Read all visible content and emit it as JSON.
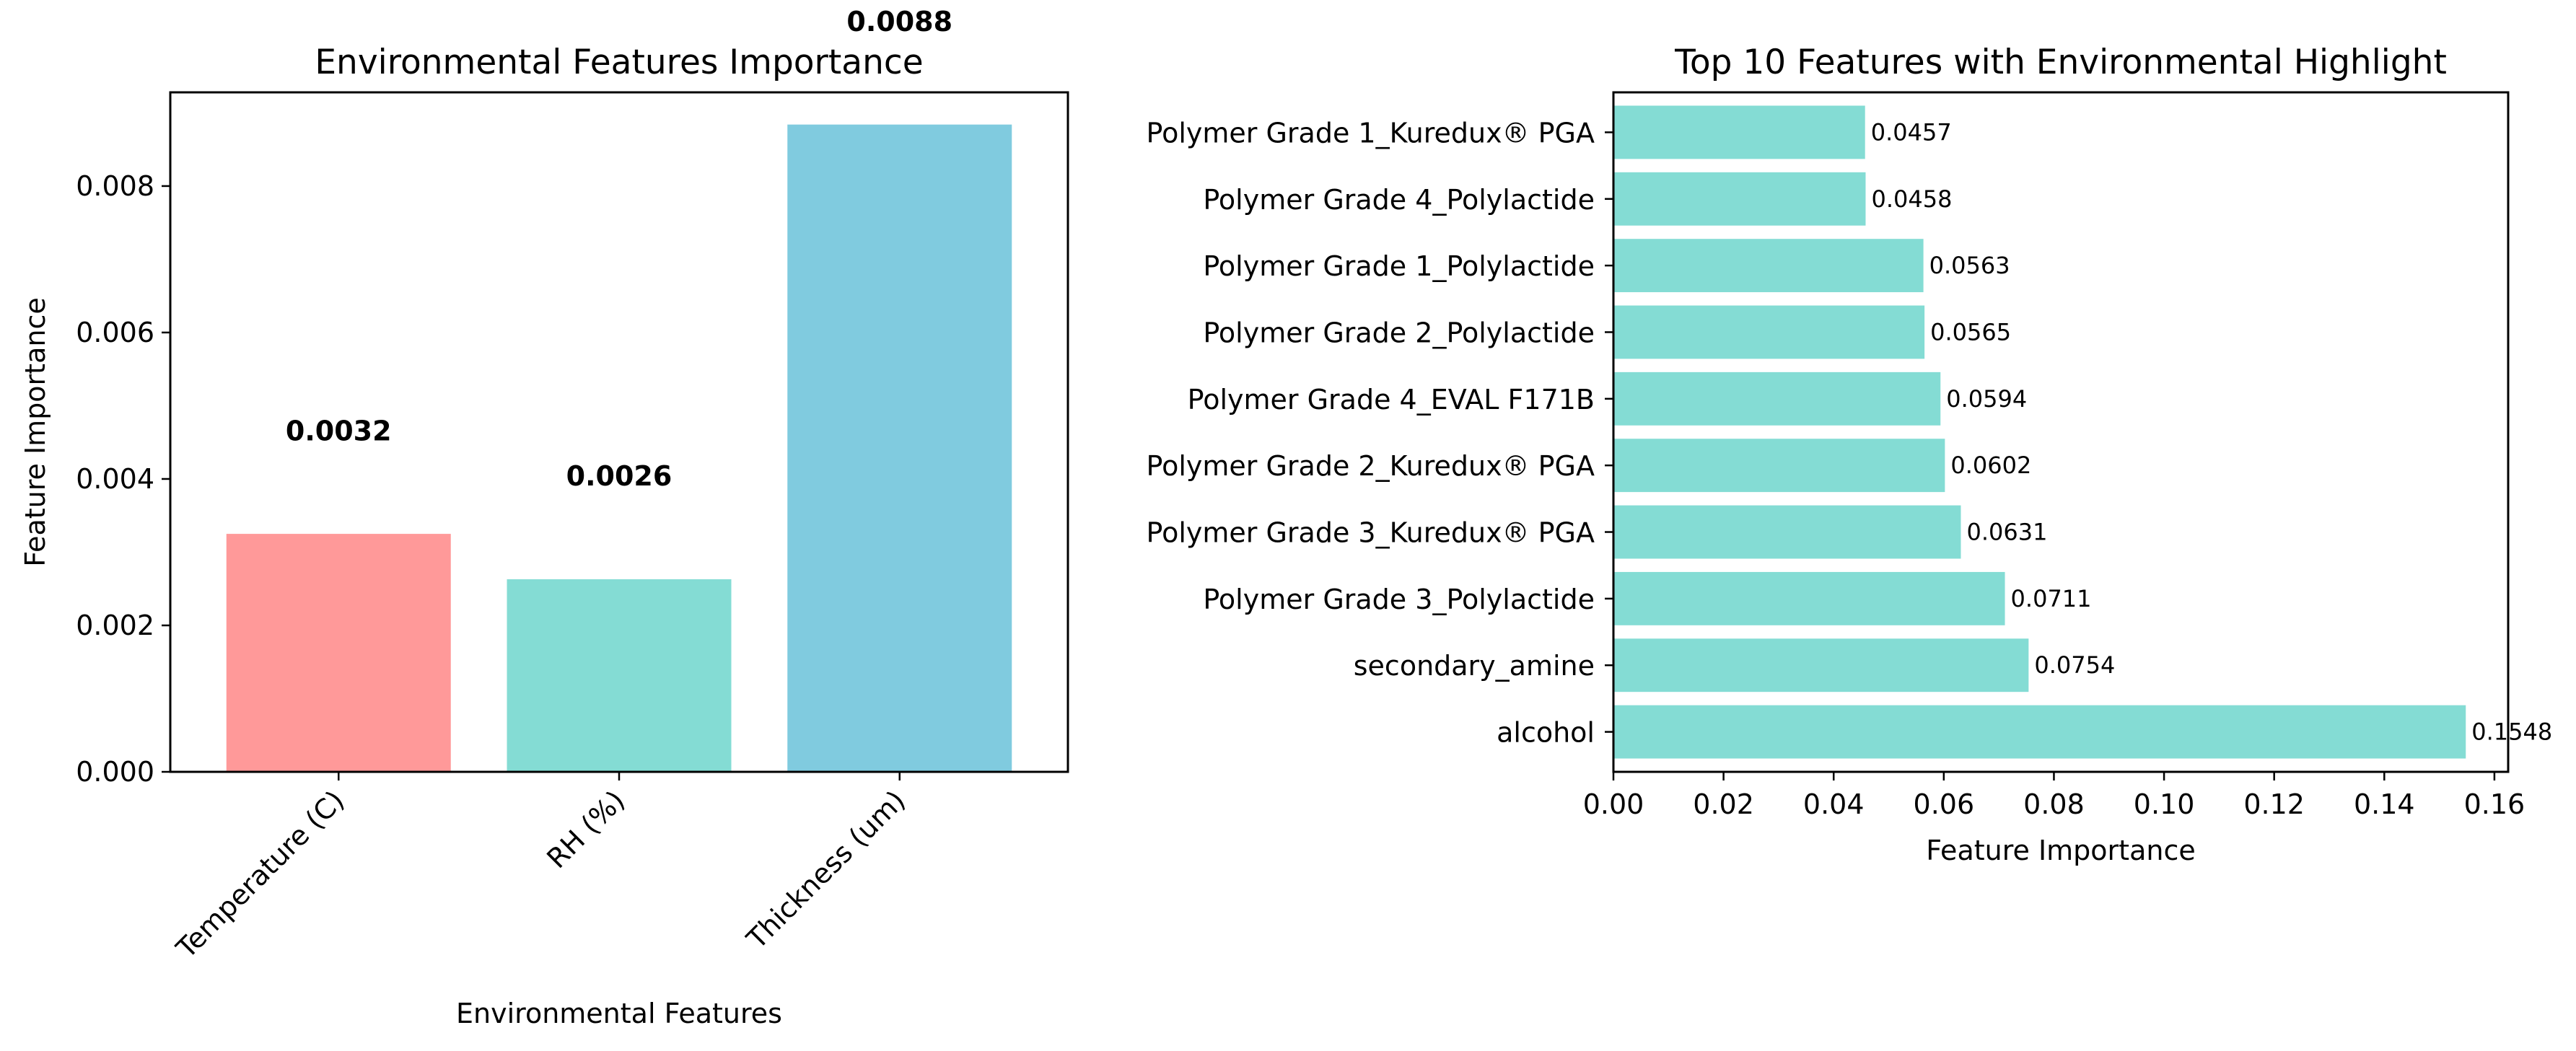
{
  "chart_data": [
    {
      "type": "bar",
      "title": "Environmental Features Importance",
      "xlabel": "Environmental Features",
      "ylabel": "Feature Importance",
      "categories": [
        "Temperature (C)",
        "RH (%)",
        "Thickness (um)"
      ],
      "values": [
        0.00325,
        0.00263,
        0.00884
      ],
      "value_labels": [
        "0.0032",
        "0.0026",
        "0.0088"
      ],
      "colors": [
        "#ff9999",
        "#84dcd4",
        "#80cbdf"
      ],
      "ylim": [
        0,
        0.00928
      ],
      "yticks": [
        0,
        0.002,
        0.004,
        0.006,
        0.008
      ],
      "ytick_labels": [
        "0.000",
        "0.002",
        "0.004",
        "0.006",
        "0.008"
      ],
      "grid": false,
      "legend": "none"
    },
    {
      "type": "bar",
      "orientation": "horizontal",
      "title": "Top 10 Features with Environmental Highlight",
      "xlabel": "Feature Importance",
      "ylabel": "",
      "categories": [
        "alcohol",
        "secondary_amine",
        "Polymer Grade 3_Polylactide",
        "Polymer Grade 3_Kuredux® PGA",
        "Polymer Grade 2_Kuredux® PGA",
        "Polymer Grade 4_EVAL F171B",
        "Polymer Grade 2_Polylactide",
        "Polymer Grade 1_Polylactide",
        "Polymer Grade 4_Polylactide",
        "Polymer Grade 1_Kuredux® PGA"
      ],
      "values": [
        0.1548,
        0.0754,
        0.0711,
        0.0631,
        0.0602,
        0.0594,
        0.0565,
        0.0563,
        0.0458,
        0.0457
      ],
      "value_labels": [
        "0.1548",
        "0.0754",
        "0.0711",
        "0.0631",
        "0.0602",
        "0.0594",
        "0.0565",
        "0.0563",
        "0.0458",
        "0.0457"
      ],
      "color": "#84dcd4",
      "xlim": [
        0,
        0.1625
      ],
      "xticks": [
        0,
        0.02,
        0.04,
        0.06,
        0.08,
        0.1,
        0.12,
        0.14,
        0.16
      ],
      "xtick_labels": [
        "0.00",
        "0.02",
        "0.04",
        "0.06",
        "0.08",
        "0.10",
        "0.12",
        "0.14",
        "0.16"
      ],
      "grid": false,
      "legend": "none"
    }
  ]
}
